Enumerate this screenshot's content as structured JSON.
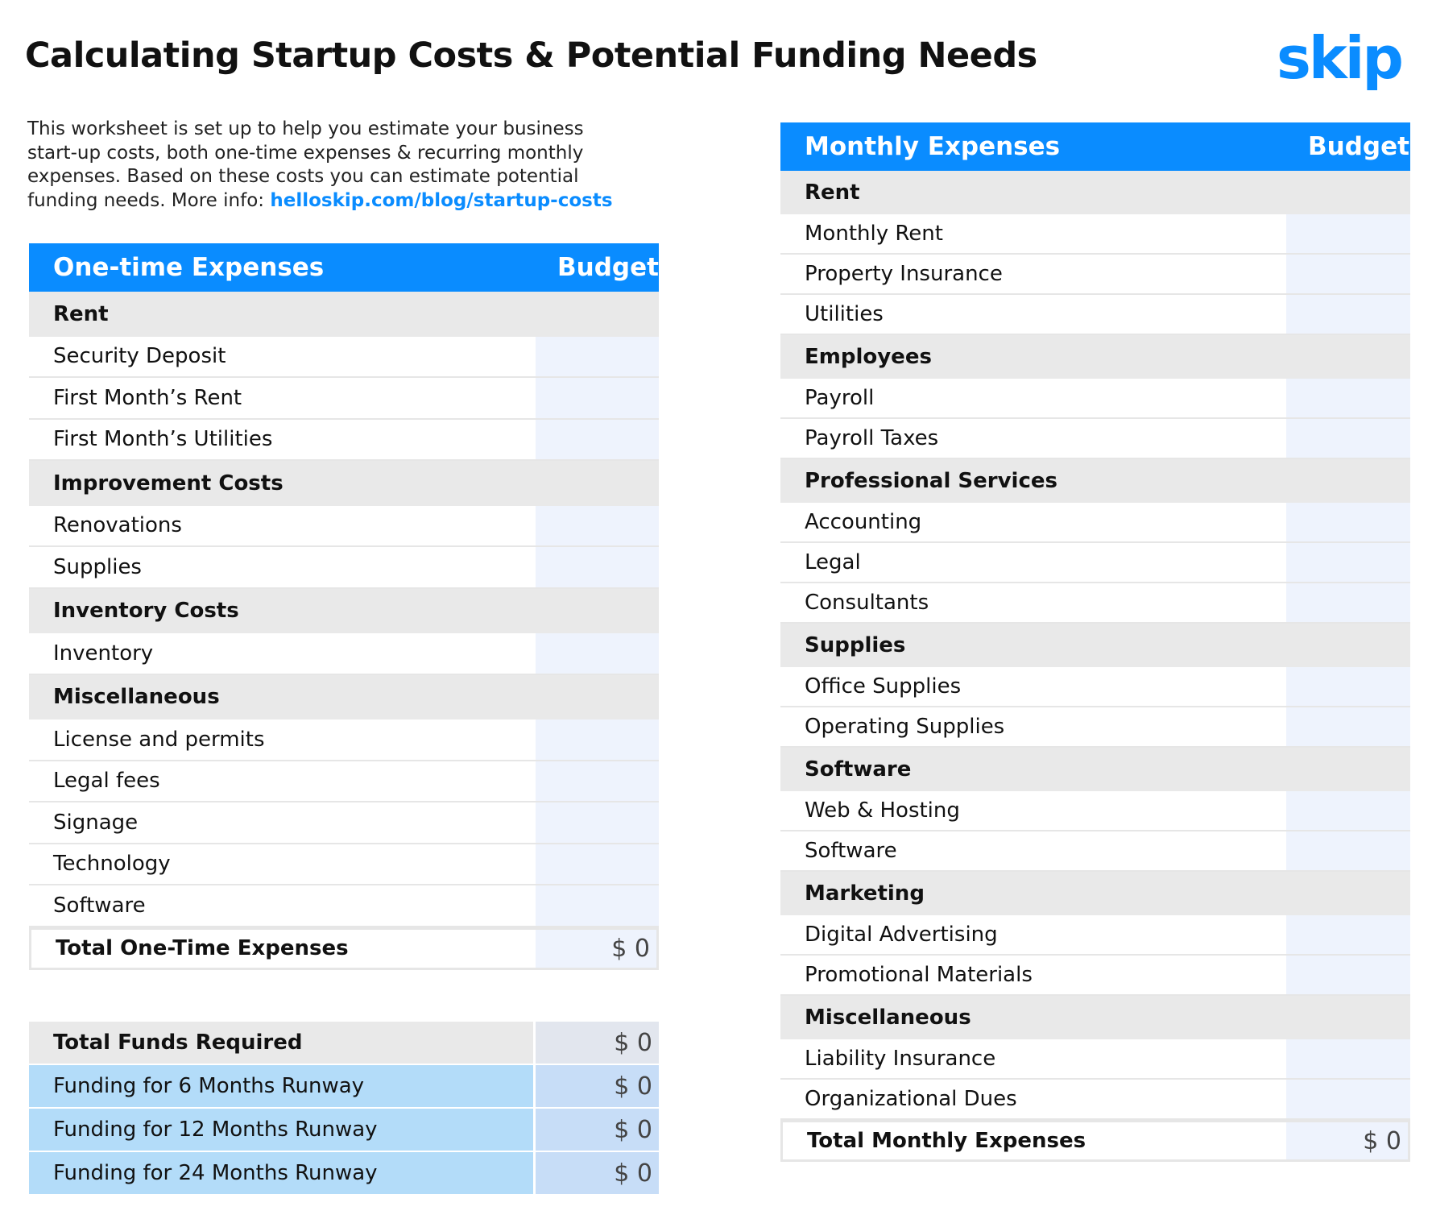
{
  "header": {
    "title": "Calculating Startup Costs & Potential Funding Needs",
    "logo": "skip"
  },
  "intro": {
    "text": "This worksheet is set up to help you estimate your business start-up costs, both one-time expenses & recurring monthly expenses. Based on these costs you can estimate potential funding needs. More info: ",
    "link": "helloskip.com/blog/startup-costs"
  },
  "one_time": {
    "header": [
      "One-time Expenses",
      "Budget"
    ],
    "groups": [
      {
        "name": "Rent",
        "items": [
          "Security Deposit",
          "First Month’s Rent",
          "First Month’s Utilities"
        ]
      },
      {
        "name": "Improvement Costs",
        "items": [
          "Renovations",
          "Supplies"
        ]
      },
      {
        "name": "Inventory Costs",
        "items": [
          "Inventory"
        ]
      },
      {
        "name": "Miscellaneous",
        "items": [
          "License and permits",
          "Legal fees",
          "Signage",
          "Technology",
          "Software"
        ]
      }
    ],
    "total": {
      "label": "Total One-Time Expenses",
      "value": "$ 0"
    }
  },
  "funding": {
    "rows": [
      {
        "label": "Total Funds Required",
        "value": "$ 0"
      },
      {
        "label": "Funding for 6 Months Runway",
        "value": "$ 0"
      },
      {
        "label": "Funding for 12 Months Runway",
        "value": "$ 0"
      },
      {
        "label": "Funding for 24 Months Runway",
        "value": "$ 0"
      }
    ]
  },
  "monthly": {
    "header": [
      "Monthly Expenses",
      "Budget"
    ],
    "groups": [
      {
        "name": "Rent",
        "items": [
          "Monthly Rent",
          "Property Insurance",
          "Utilities"
        ]
      },
      {
        "name": "Employees",
        "items": [
          "Payroll",
          "Payroll Taxes"
        ]
      },
      {
        "name": "Professional Services",
        "items": [
          "Accounting",
          "Legal",
          "Consultants"
        ]
      },
      {
        "name": "Supplies",
        "items": [
          "Office Supplies",
          "Operating Supplies"
        ]
      },
      {
        "name": "Software",
        "items": [
          "Web & Hosting",
          "Software"
        ]
      },
      {
        "name": "Marketing",
        "items": [
          "Digital Advertising",
          "Promotional Materials"
        ]
      },
      {
        "name": "Miscellaneous",
        "items": [
          "Liability Insurance",
          "Organizational Dues"
        ]
      }
    ],
    "total": {
      "label": "Total Monthly Expenses",
      "value": "$ 0"
    }
  }
}
